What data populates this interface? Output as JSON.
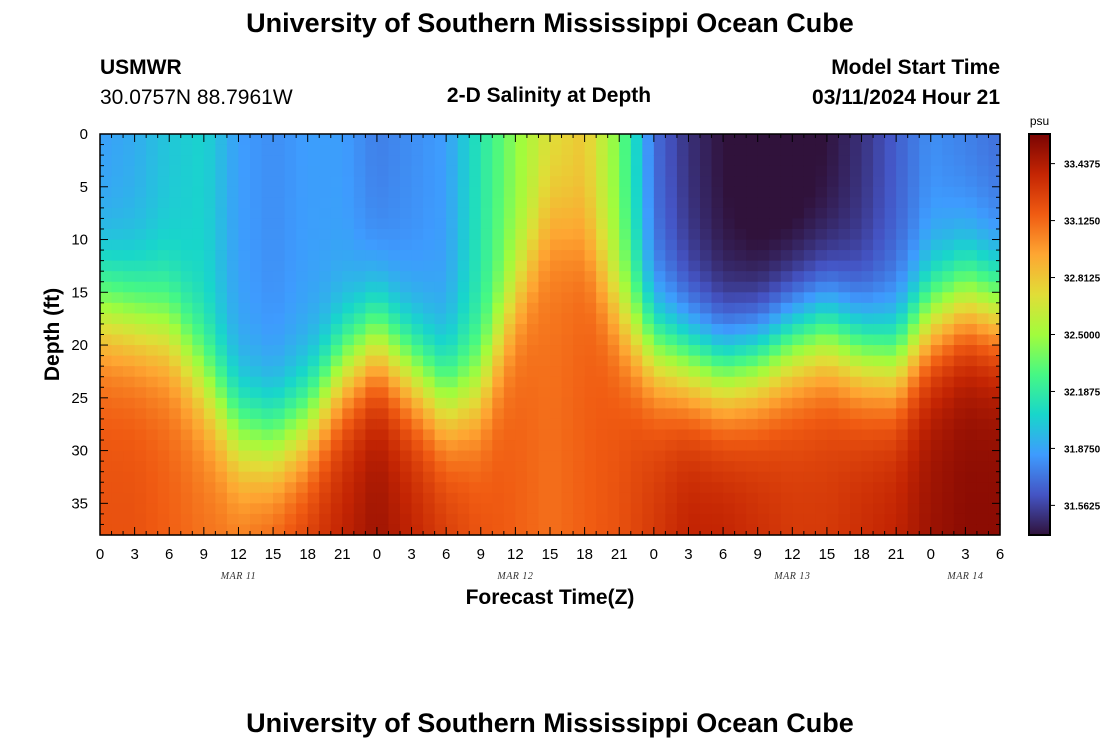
{
  "header": {
    "title": "University of Southern Mississippi Ocean Cube",
    "station": "USMWR",
    "coords": "30.0757N  88.7961W",
    "chart_title": "2-D Salinity at Depth",
    "model_label": "Model Start Time",
    "model_time": "03/11/2024 Hour 21"
  },
  "footer": {
    "title": "University of Southern Mississippi Ocean Cube"
  },
  "chart_data": {
    "type": "heatmap",
    "title": "2-D Salinity at Depth",
    "xlabel": "Forecast Time(Z)",
    "ylabel": "Depth (ft)",
    "x_ticks": [
      "0",
      "3",
      "6",
      "9",
      "12",
      "15",
      "18",
      "21",
      "0",
      "3",
      "6",
      "9",
      "12",
      "15",
      "18",
      "21",
      "0",
      "3",
      "6",
      "9",
      "12",
      "15",
      "18",
      "21",
      "0",
      "3",
      "6"
    ],
    "date_labels": [
      {
        "label": "MAR 11",
        "hour": 12
      },
      {
        "label": "MAR 12",
        "hour": 36
      },
      {
        "label": "MAR 13",
        "hour": 60
      },
      {
        "label": "MAR 14",
        "hour": 75
      }
    ],
    "x_range_hours": [
      0,
      78
    ],
    "y_ticks": [
      0,
      5,
      10,
      15,
      20,
      25,
      30,
      35
    ],
    "ylim": [
      0,
      38
    ],
    "colorbar": {
      "unit": "psu",
      "labels": [
        "33.4375",
        "33.1250",
        "32.8125",
        "32.5000",
        "32.1875",
        "31.8750",
        "31.5625"
      ],
      "values": [
        33.4375,
        33.125,
        32.8125,
        32.5,
        32.1875,
        31.875,
        31.5625
      ],
      "range": [
        31.4,
        33.6
      ],
      "colors": [
        "#30123b",
        "#4454c4",
        "#3e9bfe",
        "#18d6cb",
        "#46f884",
        "#a2fc3c",
        "#e1dd37",
        "#fea632",
        "#f05b12",
        "#c42503",
        "#7a0403"
      ]
    },
    "depth_profile": {
      "x_hours": [
        0,
        3,
        6,
        9,
        12,
        15,
        18,
        21,
        24,
        27,
        30,
        33,
        36,
        39,
        42,
        45,
        48,
        51,
        54,
        57,
        60,
        63,
        66,
        69,
        72,
        75,
        78
      ],
      "isohaline_depth_ft": [
        17,
        18,
        19,
        24,
        29,
        30,
        28,
        23,
        20,
        23,
        26,
        25,
        17,
        10,
        12,
        18,
        21,
        22,
        23,
        22,
        20,
        19,
        21,
        22,
        18,
        16,
        17
      ],
      "surface_salinity": [
        31.85,
        31.9,
        32.0,
        32.05,
        31.85,
        31.8,
        31.85,
        31.85,
        31.75,
        31.8,
        31.85,
        32.15,
        32.45,
        32.7,
        32.8,
        32.4,
        31.7,
        31.5,
        31.4,
        31.35,
        31.35,
        31.4,
        31.5,
        31.65,
        31.8,
        31.75,
        31.7
      ],
      "bottom_salinity": [
        33.2,
        33.2,
        33.15,
        33.1,
        33.1,
        33.2,
        33.3,
        33.4,
        33.5,
        33.4,
        33.3,
        33.2,
        33.15,
        33.1,
        33.15,
        33.2,
        33.3,
        33.4,
        33.4,
        33.35,
        33.3,
        33.3,
        33.35,
        33.4,
        33.5,
        33.55,
        33.55
      ]
    }
  }
}
